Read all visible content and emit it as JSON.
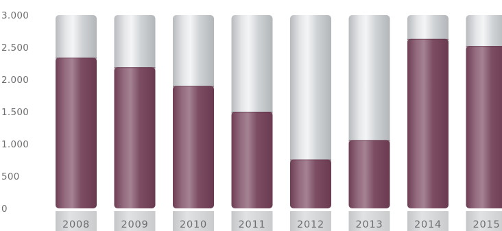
{
  "chart_data": {
    "type": "bar",
    "title": "",
    "xlabel": "",
    "ylabel": "",
    "categories": [
      "2008",
      "2009",
      "2010",
      "2011",
      "2012",
      "2013",
      "2014",
      "2015"
    ],
    "values": [
      2340,
      2190,
      1900,
      1500,
      760,
      1060,
      2630,
      2520
    ],
    "ylim": [
      0,
      3000
    ],
    "yticks": [
      0,
      500,
      1000,
      1500,
      2000,
      2500,
      3000
    ],
    "ytick_labels": [
      "0",
      "500",
      "1.000",
      "1.500",
      "2.000",
      "2.500",
      "3.000"
    ],
    "background_bar_max": 3000,
    "grid": false,
    "legend": "none",
    "colors": {
      "value_bar": "#7a4a60",
      "background_bar": "#c9cccf",
      "tick_text": "#6d6e71",
      "label_tab": "#d4d5d6"
    }
  }
}
